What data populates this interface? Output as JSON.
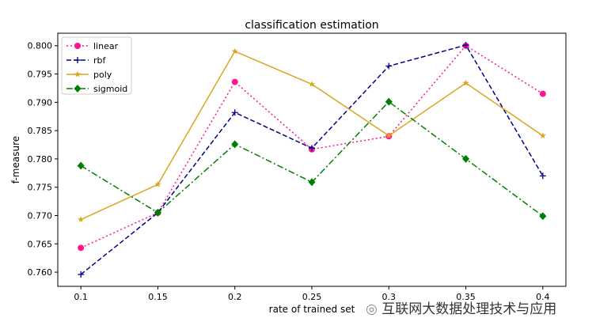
{
  "chart_data": {
    "type": "line",
    "title": "classification estimation",
    "xlabel": "rate of trained set",
    "ylabel": "f-measure",
    "x": [
      0.1,
      0.15,
      0.2,
      0.25,
      0.3,
      0.35,
      0.4
    ],
    "x_tick_labels": [
      "0.1",
      "0.15",
      "0.2",
      "0.25",
      "0.3",
      "0.35",
      "0.4"
    ],
    "xlim": [
      0.085,
      0.415
    ],
    "ylim": [
      0.7575,
      0.8022
    ],
    "y_ticks": [
      0.76,
      0.765,
      0.77,
      0.775,
      0.78,
      0.785,
      0.79,
      0.795,
      0.8
    ],
    "y_tick_labels": [
      "0.760",
      "0.765",
      "0.770",
      "0.775",
      "0.780",
      "0.785",
      "0.790",
      "0.795",
      "0.800"
    ],
    "grid": false,
    "legend_position": "top-left",
    "series": [
      {
        "name": "linear",
        "color": "#ff1493",
        "dash": "2,3",
        "marker": "circle",
        "values": [
          0.7643,
          0.7705,
          0.7936,
          0.7817,
          0.784,
          0.8,
          0.7915
        ]
      },
      {
        "name": "rbf",
        "color": "#00008b",
        "dash": "6,3",
        "marker": "plus",
        "values": [
          0.7596,
          0.7705,
          0.7882,
          0.7819,
          0.7964,
          0.8001,
          0.777
        ]
      },
      {
        "name": "poly",
        "color": "#daa520",
        "dash": "",
        "marker": "star",
        "values": [
          0.7693,
          0.7755,
          0.799,
          0.7932,
          0.7841,
          0.7934,
          0.7841
        ]
      },
      {
        "name": "sigmoid",
        "color": "#008000",
        "dash": "8,3,2,3",
        "marker": "diamond",
        "values": [
          0.7788,
          0.7705,
          0.7826,
          0.7759,
          0.7901,
          0.78,
          0.7699
        ]
      }
    ]
  },
  "watermark": "互联网大数据处理技术与应用"
}
